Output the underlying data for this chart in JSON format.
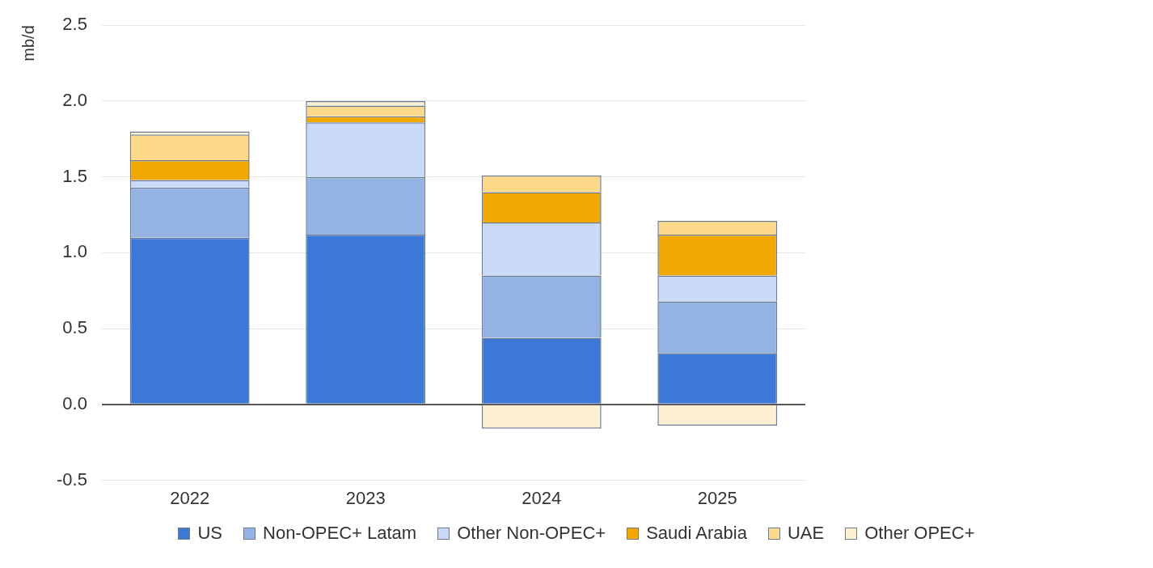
{
  "chart_data": {
    "type": "bar",
    "ylabel": "mb/d",
    "categories": [
      "2022",
      "2023",
      "2024",
      "2025"
    ],
    "stacked": true,
    "series": [
      {
        "name": "US",
        "color": "#3c78d8",
        "values": [
          1.1,
          1.12,
          0.44,
          0.34
        ]
      },
      {
        "name": "Non-OPEC+ Latam",
        "color": "#93b3e3",
        "values": [
          0.33,
          0.38,
          0.41,
          0.34
        ]
      },
      {
        "name": "Other Non-OPEC+",
        "color": "#c9daf8",
        "values": [
          0.05,
          0.36,
          0.35,
          0.17
        ]
      },
      {
        "name": "Saudi Arabia",
        "color": "#f1a800",
        "values": [
          0.13,
          0.04,
          0.2,
          0.27
        ]
      },
      {
        "name": "UAE",
        "color": "#fdd98a",
        "values": [
          0.17,
          0.07,
          0.11,
          0.09
        ]
      },
      {
        "name": "Other OPEC+",
        "color": "#fdf0d2",
        "values": [
          0.02,
          0.03,
          -0.16,
          -0.14
        ]
      }
    ],
    "ylim": [
      -0.5,
      2.5
    ],
    "yticks": [
      {
        "value": -0.5,
        "label": "-0.5"
      },
      {
        "value": 0,
        "label": "0.0"
      },
      {
        "value": 0.5,
        "label": "0.5"
      },
      {
        "value": 1,
        "label": "1.0"
      },
      {
        "value": 1.5,
        "label": "1.5"
      },
      {
        "value": 2,
        "label": "2.0"
      },
      {
        "value": 2.5,
        "label": "2.5"
      }
    ],
    "grid": "y",
    "legend": "bottom"
  }
}
